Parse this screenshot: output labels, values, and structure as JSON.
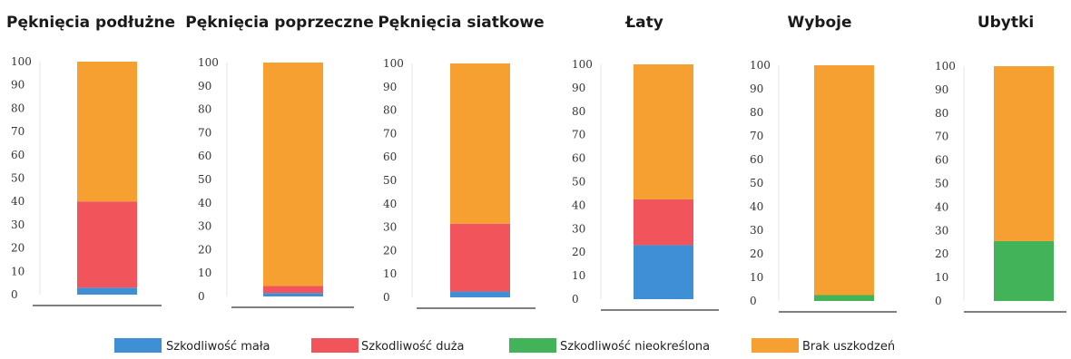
{
  "chart_data": {
    "type": "bar",
    "stacked": true,
    "grid": false,
    "legend_position": "bottom",
    "yticks": [
      0,
      10,
      20,
      30,
      40,
      50,
      60,
      70,
      80,
      90,
      100
    ],
    "ytick_labels": [
      "0",
      "10",
      "20",
      "30",
      "40",
      "50",
      "60",
      "70",
      "80",
      "90",
      "100"
    ],
    "ylim": [
      0,
      100
    ],
    "legend": [
      {
        "key": "mala",
        "label": "Szkodliwość mała",
        "color": "#3f8fd6"
      },
      {
        "key": "duza",
        "label": "Szkodliwość duża",
        "color": "#f2545b"
      },
      {
        "key": "nieokreslona",
        "label": "Szkodliwość nieokreślona",
        "color": "#43b35a"
      },
      {
        "key": "brak",
        "label": "Brak uszkodzeń",
        "color": "#f5a030"
      }
    ],
    "panels": [
      {
        "title": "Pęknięcia podłużne",
        "values": {
          "mala": 3,
          "duza": 37,
          "nieokreslona": 0,
          "brak": 60
        }
      },
      {
        "title": "Pęknięcia poprzeczne",
        "values": {
          "mala": 1.5,
          "duza": 3,
          "nieokreslona": 0,
          "brak": 95.5
        }
      },
      {
        "title": "Pęknięcia siatkowe",
        "values": {
          "mala": 2.5,
          "duza": 29,
          "nieokreslona": 0,
          "brak": 68.5
        }
      },
      {
        "title": "Łaty",
        "values": {
          "mala": 23,
          "duza": 19.5,
          "nieokreslona": 0,
          "brak": 57.5
        }
      },
      {
        "title": "Wyboje",
        "values": {
          "mala": 0,
          "duza": 0,
          "nieokreslona": 2.5,
          "brak": 97.5
        }
      },
      {
        "title": "Ubytki",
        "values": {
          "mala": 0,
          "duza": 0,
          "nieokreslona": 25.5,
          "brak": 74.5
        }
      }
    ]
  }
}
